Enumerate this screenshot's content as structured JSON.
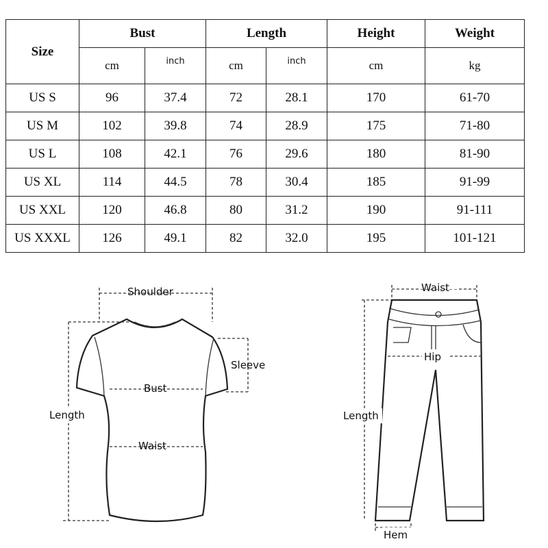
{
  "table": {
    "size_header": "Size",
    "groups": [
      "Bust",
      "Length",
      "Height",
      "Weight"
    ],
    "units": [
      "cm",
      "inch",
      "cm",
      "inch",
      "cm",
      "kg"
    ],
    "rows": [
      [
        "US S",
        "96",
        "37.4",
        "72",
        "28.1",
        "170",
        "61-70"
      ],
      [
        "US M",
        "102",
        "39.8",
        "74",
        "28.9",
        "175",
        "71-80"
      ],
      [
        "US L",
        "108",
        "42.1",
        "76",
        "29.6",
        "180",
        "81-90"
      ],
      [
        "US XL",
        "114",
        "44.5",
        "78",
        "30.4",
        "185",
        "91-99"
      ],
      [
        "US XXL",
        "120",
        "46.8",
        "80",
        "31.2",
        "190",
        "91-111"
      ],
      [
        "US XXXL",
        "126",
        "49.1",
        "82",
        "32.0",
        "195",
        "101-121"
      ]
    ]
  },
  "shirt": {
    "shoulder": "Shoulder",
    "sleeve": "Sleeve",
    "bust": "Bust",
    "length": "Length",
    "waist": "Waist"
  },
  "pants": {
    "waist": "Waist",
    "hip": "Hip",
    "length": "Length",
    "hem": "Hem"
  }
}
